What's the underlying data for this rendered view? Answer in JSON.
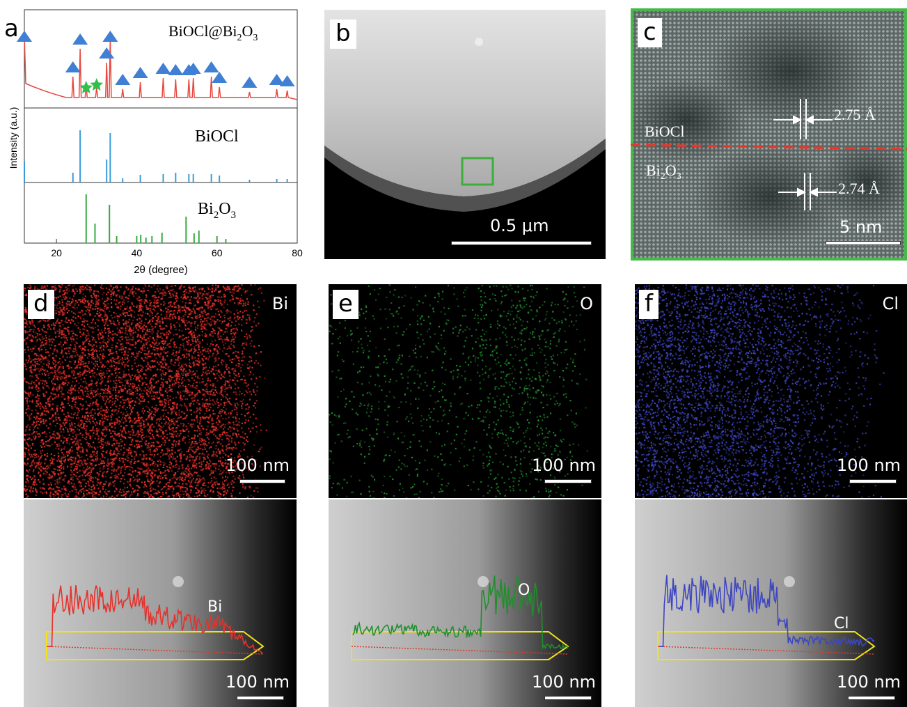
{
  "panel_a": {
    "letter": "a",
    "ylabel": "Intensity (a.u.)",
    "xlabel": "2θ (degree)",
    "xticks": [
      "20",
      "40",
      "60",
      "80"
    ],
    "top": {
      "label_main": "BiOCl@Bi",
      "label_sub": "2",
      "label_end": "O",
      "label_sub2": "3"
    },
    "mid": {
      "label": "BiOCl"
    },
    "bot": {
      "label_main": "Bi",
      "label_sub": "2",
      "label_end": "O",
      "label_sub2": "3"
    },
    "colors": {
      "top": "#e8473f",
      "mid": "#3a9ad9",
      "bot": "#3aa845",
      "triangle": "#3f7fd4",
      "star": "#2fbf4a"
    }
  },
  "chart_data": {
    "type": "line",
    "xlabel": "2θ (degree)",
    "ylabel": "Intensity (a.u.)",
    "xlim": [
      12,
      80
    ],
    "series": [
      {
        "name": "BiOCl",
        "type": "stem",
        "x": [
          12.0,
          24.1,
          25.9,
          32.5,
          33.4,
          36.5,
          40.9,
          46.6,
          49.7,
          53.0,
          54.1,
          58.6,
          60.6,
          68.1,
          74.9,
          77.5
        ],
        "values": [
          30,
          14,
          75,
          33,
          71,
          6,
          11,
          12,
          14,
          12,
          12,
          12,
          10,
          4,
          5,
          5
        ]
      },
      {
        "name": "Bi2O3",
        "type": "stem",
        "x": [
          27.4,
          29.6,
          33.2,
          35.0,
          40.0,
          41.0,
          42.3,
          43.8,
          46.3,
          52.3,
          54.3,
          55.5,
          60.0,
          62.2
        ],
        "values": [
          70,
          28,
          55,
          10,
          10,
          12,
          8,
          10,
          15,
          38,
          14,
          18,
          10,
          6
        ]
      },
      {
        "name": "BiOCl@Bi2O3",
        "type": "line",
        "x": [
          12.0,
          24.1,
          25.9,
          27.4,
          30.0,
          32.5,
          33.4,
          36.5,
          40.9,
          46.6,
          49.7,
          53.0,
          54.1,
          58.6,
          60.6,
          68.1,
          74.9,
          77.5
        ],
        "values": [
          90,
          30,
          70,
          18,
          14,
          50,
          85,
          12,
          22,
          28,
          26,
          26,
          28,
          30,
          15,
          8,
          12,
          10
        ]
      }
    ],
    "markers": {
      "BiOCl": "triangle",
      "Bi2O3": "star"
    }
  },
  "panel_b": {
    "letter": "b",
    "scalebar": "0.5 μm",
    "box_color": "#3cae3c"
  },
  "panel_c": {
    "letter": "c",
    "label_top": "BiOCl",
    "label_bottom_main": "Bi",
    "label_bottom_sub": "2",
    "label_bottom_end": "O",
    "label_bottom_sub2": "3",
    "spacing_top": "2.75 Å",
    "spacing_bottom": "2.74 Å",
    "scalebar": "5 nm",
    "frame_color": "#47b848",
    "interface_color": "#e03a2e"
  },
  "panel_d": {
    "letter": "d",
    "element": "Bi",
    "scalebar_top": "100 nm",
    "scalebar_bottom": "100 nm",
    "line_label": "Bi",
    "color": "#e8302a"
  },
  "panel_e": {
    "letter": "e",
    "element": "O",
    "scalebar_top": "100 nm",
    "scalebar_bottom": "100 nm",
    "line_label": "O",
    "color": "#1f8f2c"
  },
  "panel_f": {
    "letter": "f",
    "element": "Cl",
    "scalebar_top": "100 nm",
    "scalebar_bottom": "100 nm",
    "line_label": "Cl",
    "color": "#3e46c0"
  }
}
